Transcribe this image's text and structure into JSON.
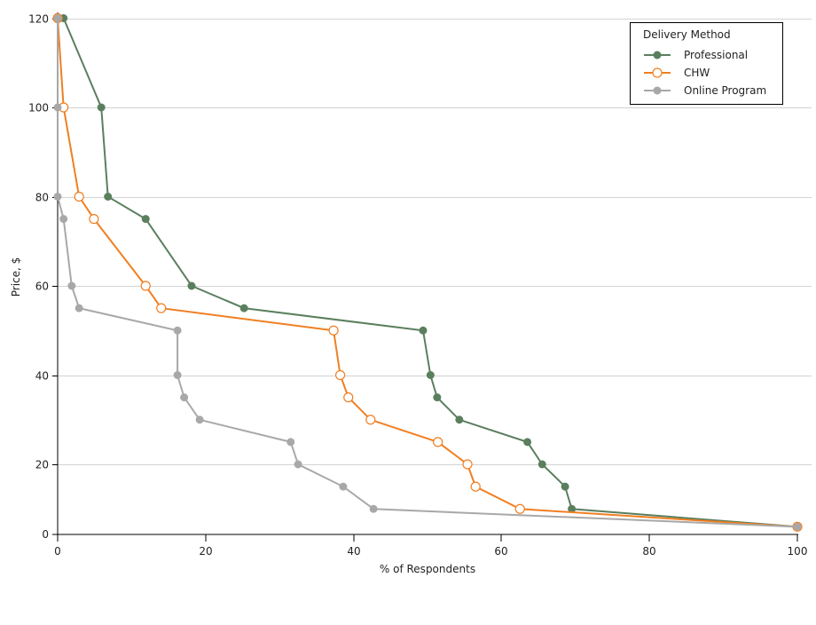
{
  "chart_data": {
    "type": "line",
    "title": "",
    "xlabel": "% of Respondents",
    "ylabel": "Price, $",
    "xlim": [
      0,
      100
    ],
    "ylim": [
      0,
      120
    ],
    "xticks": [
      0,
      20,
      40,
      60,
      80,
      100
    ],
    "yticks": [
      0,
      20,
      40,
      60,
      80,
      100,
      120
    ],
    "grid": "horizontal",
    "legend": {
      "title": "Delivery Method",
      "placement": "top-right"
    },
    "series": [
      {
        "name": "Professional",
        "color": "#5a7f5e",
        "marker": "filled-circle",
        "x": [
          0.8,
          5.9,
          6.8,
          11.9,
          18.1,
          25.2,
          49.4,
          50.4,
          51.3,
          54.3,
          63.5,
          65.5,
          68.6,
          69.5,
          100
        ],
        "y": [
          120,
          100,
          80,
          75,
          60,
          55,
          50,
          40,
          35,
          30,
          25,
          20,
          15,
          10,
          6
        ]
      },
      {
        "name": "CHW",
        "color": "#f07f22",
        "marker": "open-circle",
        "x": [
          0,
          0.8,
          2.9,
          4.9,
          11.9,
          14.0,
          37.3,
          38.2,
          39.3,
          42.3,
          51.4,
          55.4,
          56.5,
          62.5,
          100
        ],
        "y": [
          120,
          100,
          80,
          75,
          60,
          55,
          50,
          40,
          35,
          30,
          25,
          20,
          15,
          10,
          6
        ]
      },
      {
        "name": "Online Program",
        "color": "#a8a8a8",
        "marker": "filled-circle",
        "x": [
          0,
          0,
          0,
          0.8,
          1.9,
          2.9,
          16.2,
          16.2,
          17.1,
          19.2,
          31.5,
          32.5,
          38.6,
          42.7,
          100
        ],
        "y": [
          120,
          100,
          80,
          75,
          60,
          55,
          50,
          40,
          35,
          30,
          25,
          20,
          15,
          10,
          6
        ]
      }
    ]
  }
}
